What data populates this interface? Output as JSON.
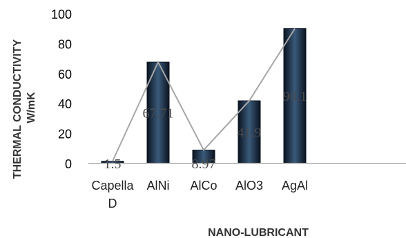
{
  "chart_data": {
    "type": "bar",
    "categories": [
      [
        "Capella",
        "D"
      ],
      [
        "AlNi"
      ],
      [
        "AlCo"
      ],
      [
        "AlO3"
      ],
      [
        "AgAl"
      ]
    ],
    "values": [
      1.5,
      67.71,
      8.97,
      41.9,
      90.1
    ],
    "data_labels": [
      "1.5",
      "67.71",
      "8.97",
      "41.9",
      "90.1"
    ],
    "overlay_line": true,
    "title": "",
    "xlabel": "NANO-LUBRICANT",
    "ylabel": [
      "THERMAL CONDUCTIVITY",
      "W/mK"
    ],
    "ylim": [
      0,
      100
    ],
    "yticks": [
      0,
      20,
      40,
      60,
      80,
      100
    ],
    "grid": false,
    "legend": "none",
    "colors": {
      "bar_edge": "#0b1320",
      "bar_center": "#3a5a7a",
      "line": "#a6a6a6",
      "axis": "#bfbfbf"
    }
  }
}
